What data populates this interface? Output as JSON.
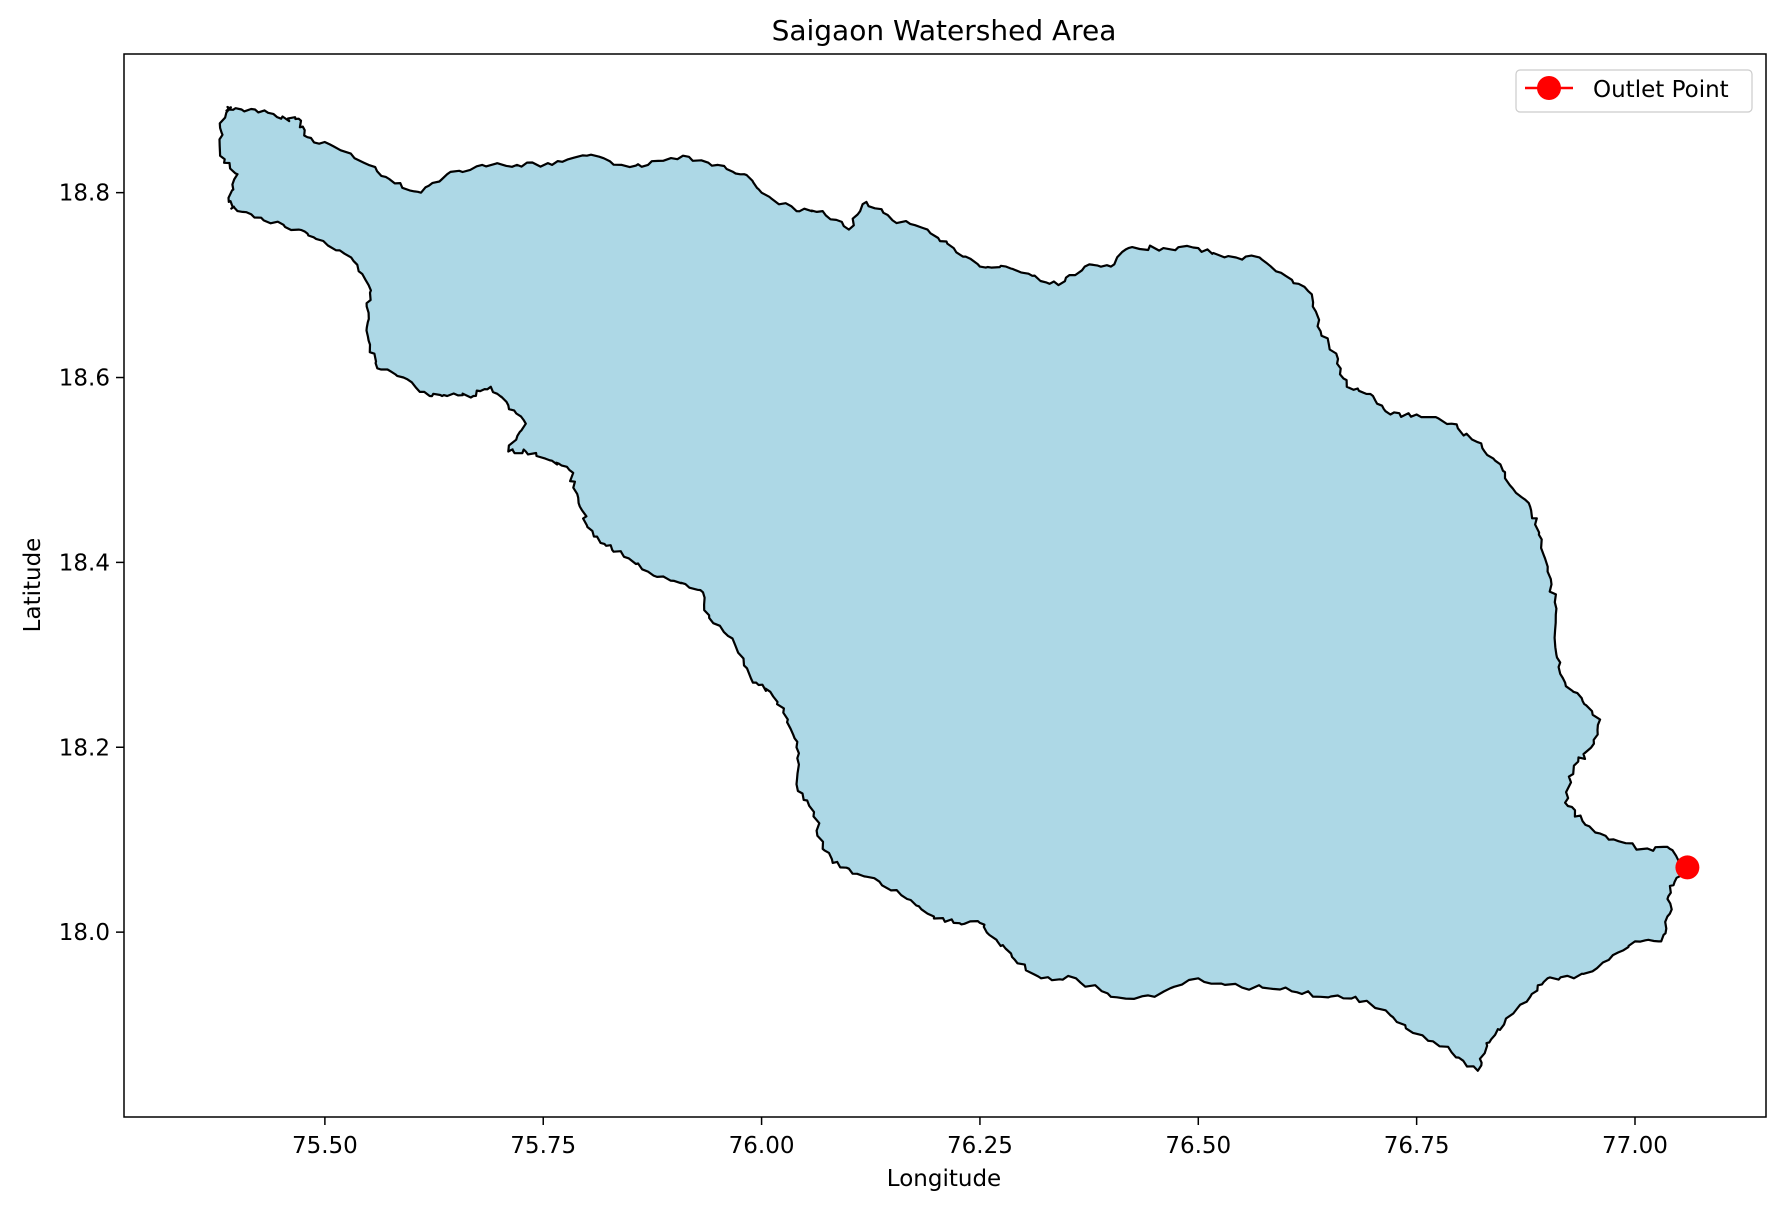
{
  "chart_data": {
    "type": "map",
    "title": "Saigaon Watershed Area",
    "xlabel": "Longitude",
    "ylabel": "Latitude",
    "xlim": [
      75.27,
      77.15
    ],
    "ylim": [
      17.8,
      18.95
    ],
    "xticks": [
      75.5,
      75.75,
      76.0,
      76.25,
      76.5,
      76.75,
      77.0
    ],
    "xtick_labels": [
      "75.50",
      "75.75",
      "76.00",
      "76.25",
      "76.50",
      "76.75",
      "77.00"
    ],
    "yticks": [
      18.0,
      18.2,
      18.4,
      18.6,
      18.8
    ],
    "ytick_labels": [
      "18.0",
      "18.2",
      "18.4",
      "18.6",
      "18.8"
    ],
    "watershed": {
      "fill": "#add8e6",
      "edge": "#000000",
      "boundary": [
        [
          75.39,
          18.89
        ],
        [
          75.42,
          18.89
        ],
        [
          75.45,
          18.88
        ],
        [
          75.47,
          18.88
        ],
        [
          75.48,
          18.86
        ],
        [
          75.51,
          18.85
        ],
        [
          75.55,
          18.83
        ],
        [
          75.58,
          18.81
        ],
        [
          75.61,
          18.8
        ],
        [
          75.64,
          18.82
        ],
        [
          75.68,
          18.83
        ],
        [
          75.72,
          18.83
        ],
        [
          75.76,
          18.83
        ],
        [
          75.8,
          18.84
        ],
        [
          75.84,
          18.83
        ],
        [
          75.87,
          18.83
        ],
        [
          75.91,
          18.84
        ],
        [
          75.95,
          18.83
        ],
        [
          75.98,
          18.82
        ],
        [
          76.0,
          18.8
        ],
        [
          76.04,
          18.78
        ],
        [
          76.07,
          18.78
        ],
        [
          76.1,
          18.76
        ],
        [
          76.12,
          18.79
        ],
        [
          76.15,
          18.77
        ],
        [
          76.19,
          18.76
        ],
        [
          76.22,
          18.74
        ],
        [
          76.25,
          18.72
        ],
        [
          76.28,
          18.72
        ],
        [
          76.31,
          18.71
        ],
        [
          76.34,
          18.7
        ],
        [
          76.37,
          18.72
        ],
        [
          76.4,
          18.72
        ],
        [
          76.42,
          18.74
        ],
        [
          76.46,
          18.74
        ],
        [
          76.5,
          18.74
        ],
        [
          76.53,
          18.73
        ],
        [
          76.57,
          18.73
        ],
        [
          76.6,
          18.71
        ],
        [
          76.63,
          18.69
        ],
        [
          76.64,
          18.65
        ],
        [
          76.66,
          18.62
        ],
        [
          76.67,
          18.59
        ],
        [
          76.7,
          18.58
        ],
        [
          76.72,
          18.56
        ],
        [
          76.75,
          18.56
        ],
        [
          76.79,
          18.55
        ],
        [
          76.82,
          18.53
        ],
        [
          76.84,
          18.51
        ],
        [
          76.86,
          18.48
        ],
        [
          76.88,
          18.46
        ],
        [
          76.89,
          18.43
        ],
        [
          76.9,
          18.39
        ],
        [
          76.91,
          18.35
        ],
        [
          76.91,
          18.3
        ],
        [
          76.92,
          18.27
        ],
        [
          76.94,
          18.25
        ],
        [
          76.96,
          18.23
        ],
        [
          76.95,
          18.2
        ],
        [
          76.93,
          18.18
        ],
        [
          76.92,
          18.14
        ],
        [
          76.94,
          18.12
        ],
        [
          76.97,
          18.1
        ],
        [
          77.01,
          18.09
        ],
        [
          77.04,
          18.09
        ],
        [
          77.06,
          18.07
        ],
        [
          77.04,
          18.05
        ],
        [
          77.04,
          18.02
        ],
        [
          77.03,
          17.99
        ],
        [
          77.0,
          17.99
        ],
        [
          76.97,
          17.97
        ],
        [
          76.93,
          17.95
        ],
        [
          76.9,
          17.95
        ],
        [
          76.88,
          17.93
        ],
        [
          76.85,
          17.9
        ],
        [
          76.83,
          17.88
        ],
        [
          76.82,
          17.85
        ],
        [
          76.79,
          17.87
        ],
        [
          76.75,
          17.89
        ],
        [
          76.72,
          17.91
        ],
        [
          76.68,
          17.93
        ],
        [
          76.64,
          17.93
        ],
        [
          76.6,
          17.94
        ],
        [
          76.55,
          17.94
        ],
        [
          76.5,
          17.95
        ],
        [
          76.45,
          17.93
        ],
        [
          76.4,
          17.93
        ],
        [
          76.36,
          17.95
        ],
        [
          76.32,
          17.95
        ],
        [
          76.29,
          17.97
        ],
        [
          76.27,
          17.99
        ],
        [
          76.25,
          18.01
        ],
        [
          76.22,
          18.01
        ],
        [
          76.19,
          18.02
        ],
        [
          76.16,
          18.04
        ],
        [
          76.12,
          18.06
        ],
        [
          76.09,
          18.07
        ],
        [
          76.07,
          18.09
        ],
        [
          76.06,
          18.13
        ],
        [
          76.04,
          18.16
        ],
        [
          76.04,
          18.2
        ],
        [
          76.03,
          18.23
        ],
        [
          76.01,
          18.26
        ],
        [
          75.99,
          18.27
        ],
        [
          75.97,
          18.31
        ],
        [
          75.94,
          18.34
        ],
        [
          75.93,
          18.37
        ],
        [
          75.9,
          18.38
        ],
        [
          75.87,
          18.39
        ],
        [
          75.84,
          18.41
        ],
        [
          75.82,
          18.42
        ],
        [
          75.8,
          18.44
        ],
        [
          75.79,
          18.47
        ],
        [
          75.78,
          18.5
        ],
        [
          75.76,
          18.51
        ],
        [
          75.73,
          18.52
        ],
        [
          75.71,
          18.52
        ],
        [
          75.73,
          18.55
        ],
        [
          75.71,
          18.57
        ],
        [
          75.69,
          18.59
        ],
        [
          75.67,
          18.58
        ],
        [
          75.64,
          18.58
        ],
        [
          75.62,
          18.58
        ],
        [
          75.59,
          18.6
        ],
        [
          75.56,
          18.61
        ],
        [
          75.55,
          18.64
        ],
        [
          75.55,
          18.67
        ],
        [
          75.55,
          18.7
        ],
        [
          75.53,
          18.73
        ],
        [
          75.49,
          18.75
        ],
        [
          75.47,
          18.76
        ],
        [
          75.43,
          18.77
        ],
        [
          75.4,
          18.78
        ],
        [
          75.39,
          18.79
        ],
        [
          75.4,
          18.82
        ],
        [
          75.38,
          18.84
        ],
        [
          75.38,
          18.87
        ],
        [
          75.39,
          18.89
        ]
      ]
    },
    "outlet": {
      "label": "Outlet Point",
      "lon": 77.06,
      "lat": 18.07,
      "color": "#ff0000"
    },
    "legend_position": "top-right",
    "grid": false
  }
}
